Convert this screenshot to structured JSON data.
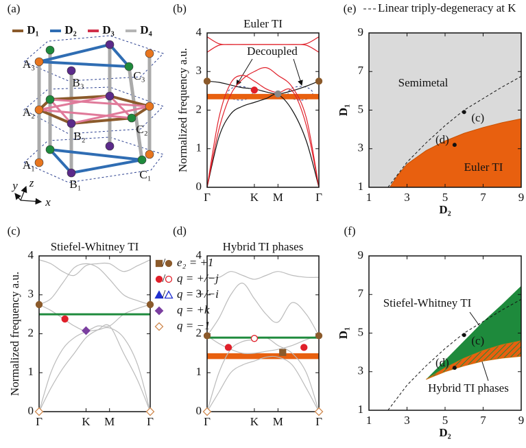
{
  "panels": {
    "a": {
      "label": "(a)",
      "legend": [
        {
          "text": "D₁",
          "color": "#8b5a2b"
        },
        {
          "text": "D₂",
          "color": "#2f6db3"
        },
        {
          "text": "D₃",
          "color": "#d0304a"
        },
        {
          "text": "D₄",
          "color": "#b5b5b5"
        }
      ],
      "atoms": [
        "A₃",
        "B₃",
        "C₃",
        "A₂",
        "B₂",
        "C₂",
        "A₁",
        "B₁",
        "C₁"
      ],
      "axes": [
        "y",
        "z",
        "x"
      ]
    },
    "b": {
      "label": "(b)",
      "title": "Euler TI",
      "ylabel": "Normalized frequency a.u.",
      "annotation": "Decoupled",
      "xlim": [
        0,
        2.366
      ],
      "ylim": [
        0,
        4
      ],
      "yticks": [
        0,
        1,
        2,
        3,
        4
      ],
      "xticks": [
        {
          "value": 0,
          "label": "Γ"
        },
        {
          "value": 1,
          "label": "K"
        },
        {
          "value": 1.5,
          "label": "M"
        },
        {
          "value": 2.366,
          "label": "Γ"
        }
      ],
      "x": [
        0,
        0.25,
        0.5,
        0.75,
        1,
        1.25,
        1.5,
        1.8,
        2.1,
        2.366
      ],
      "gap": [
        2.28,
        2.42
      ],
      "gap_color": "#e8600f",
      "bands": [
        {
          "color": "#111",
          "values": [
            2.75,
            2.72,
            2.65,
            2.58,
            2.55,
            2.47,
            2.42,
            2.5,
            2.62,
            2.75
          ]
        },
        {
          "color": "#111",
          "values": [
            0,
            1.3,
            1.9,
            2.1,
            2.2,
            2.3,
            2.4,
            2.0,
            1.2,
            0
          ]
        },
        {
          "color": "#e0202a",
          "values": [
            0,
            1.8,
            2.7,
            2.9,
            2.75,
            2.55,
            2.45,
            2.5,
            1.6,
            0
          ]
        },
        {
          "color": "#e0202a",
          "values": [
            0,
            1.5,
            2.4,
            2.8,
            3.0,
            3.1,
            2.9,
            2.6,
            1.8,
            0
          ]
        },
        {
          "color": "#e0202a",
          "values": [
            3.9,
            3.72,
            3.7,
            3.7,
            3.7,
            3.7,
            3.7,
            3.7,
            3.72,
            3.9
          ]
        },
        {
          "color": "#e0202a",
          "values": [
            3.5,
            3.68,
            3.7,
            3.7,
            3.7,
            3.7,
            3.7,
            3.7,
            3.68,
            3.5
          ]
        }
      ],
      "markers": [
        {
          "x": 0,
          "y": 2.75,
          "shape": "circle",
          "color": "#8b5a2b",
          "filled": true
        },
        {
          "x": 2.366,
          "y": 2.75,
          "shape": "circle",
          "color": "#8b5a2b",
          "filled": true
        },
        {
          "x": 1,
          "y": 2.52,
          "shape": "circle",
          "color": "#e0202a",
          "filled": true
        },
        {
          "x": 1.5,
          "y": 2.42,
          "shape": "circle",
          "color": "#888",
          "filled": true
        }
      ]
    },
    "c": {
      "label": "(c)",
      "title": "Stiefel-Whitney TI",
      "ylabel": "Normalized frequency a.u.",
      "xlim": [
        0,
        2.366
      ],
      "ylim": [
        0,
        4
      ],
      "yticks": [
        0,
        1,
        2,
        3,
        4
      ],
      "xticks": [
        {
          "value": 0,
          "label": "Γ"
        },
        {
          "value": 1,
          "label": "K"
        },
        {
          "value": 1.5,
          "label": "M"
        },
        {
          "value": 2.366,
          "label": "Γ"
        }
      ],
      "x": [
        0,
        0.25,
        0.5,
        0.75,
        1,
        1.25,
        1.5,
        1.8,
        2.1,
        2.366
      ],
      "line": 2.5,
      "line_color": "#1e8a3c",
      "bands": [
        {
          "color": "#bbb",
          "values": [
            0,
            1.0,
            1.6,
            1.9,
            2.05,
            2.1,
            2.15,
            1.9,
            1.2,
            0
          ]
        },
        {
          "color": "#bbb",
          "values": [
            0,
            0.6,
            1.1,
            1.5,
            1.9,
            2.1,
            2.2,
            1.5,
            0.8,
            0
          ]
        },
        {
          "color": "#bbb",
          "values": [
            2.75,
            2.6,
            2.4,
            2.2,
            2.08,
            2.2,
            2.2,
            2.5,
            2.65,
            2.75
          ]
        },
        {
          "color": "#bbb",
          "values": [
            2.75,
            2.9,
            3.3,
            3.7,
            3.8,
            3.7,
            3.4,
            3.0,
            2.85,
            2.75
          ]
        },
        {
          "color": "#bbb",
          "values": [
            3.9,
            3.8,
            3.6,
            3.5,
            3.75,
            3.8,
            3.8,
            3.6,
            3.75,
            3.9
          ]
        }
      ],
      "markers": [
        {
          "x": 0,
          "y": 2.75,
          "shape": "circle",
          "color": "#8b5a2b",
          "filled": true
        },
        {
          "x": 2.366,
          "y": 2.75,
          "shape": "circle",
          "color": "#8b5a2b",
          "filled": true
        },
        {
          "x": 0.55,
          "y": 2.38,
          "shape": "circle",
          "color": "#e0202a",
          "filled": true
        },
        {
          "x": 1,
          "y": 2.08,
          "shape": "diamond",
          "color": "#7b3fa0",
          "filled": true
        },
        {
          "x": 0,
          "y": 0,
          "shape": "diamond",
          "color": "#d08a50",
          "filled": false
        },
        {
          "x": 2.366,
          "y": 0,
          "shape": "diamond",
          "color": "#d08a50",
          "filled": false
        }
      ],
      "legend": [
        {
          "text": "e₂ = +1",
          "symbols": [
            {
              "shape": "square",
              "color": "#8b5a2b",
              "filled": true
            },
            {
              "shape": "circle",
              "color": "#8b5a2b",
              "filled": true
            }
          ]
        },
        {
          "text": "q = +/−j",
          "symbols": [
            {
              "shape": "circle",
              "color": "#e0202a",
              "filled": true
            },
            {
              "shape": "circle",
              "color": "#e0202a",
              "filled": false
            }
          ]
        },
        {
          "text": "q = +/−i",
          "symbols": [
            {
              "shape": "triangle",
              "color": "#2030d0",
              "filled": true
            },
            {
              "shape": "triangle",
              "color": "#2030d0",
              "filled": false
            }
          ]
        },
        {
          "text": "q = +k",
          "symbols": [
            {
              "shape": "diamond",
              "color": "#7b3fa0",
              "filled": true
            }
          ]
        },
        {
          "text": "q = −1",
          "symbols": [
            {
              "shape": "diamond",
              "color": "#d08a50",
              "filled": false
            }
          ]
        }
      ]
    },
    "d": {
      "label": "(d)",
      "title": "Hybrid TI phases",
      "xlim": [
        0,
        2.366
      ],
      "ylim": [
        0,
        4
      ],
      "yticks": [
        0,
        1,
        2,
        3,
        4
      ],
      "xticks": [
        {
          "value": 0,
          "label": "Γ"
        },
        {
          "value": 1,
          "label": "K"
        },
        {
          "value": 1.5,
          "label": "M"
        },
        {
          "value": 2.366,
          "label": "Γ"
        }
      ],
      "x": [
        0,
        0.25,
        0.5,
        0.75,
        1,
        1.25,
        1.5,
        1.8,
        2.1,
        2.366
      ],
      "gap": [
        1.35,
        1.5
      ],
      "gap_color": "#e8600f",
      "line": 1.9,
      "line_color": "#1e8a3c",
      "bands": [
        {
          "color": "#bbb",
          "values": [
            0,
            0.5,
            1.0,
            1.2,
            1.3,
            1.4,
            1.4,
            1.2,
            0.6,
            0
          ]
        },
        {
          "color": "#bbb",
          "values": [
            0,
            1.0,
            1.6,
            1.8,
            1.85,
            1.9,
            1.7,
            1.5,
            1.0,
            0
          ]
        },
        {
          "color": "#bbb",
          "values": [
            1.95,
            1.75,
            1.6,
            1.5,
            1.5,
            1.55,
            1.6,
            1.7,
            1.85,
            1.95
          ]
        },
        {
          "color": "#bbb",
          "values": [
            1.95,
            2.4,
            3.0,
            3.3,
            2.9,
            2.5,
            2.3,
            2.8,
            2.5,
            1.95
          ]
        },
        {
          "color": "#bbb",
          "values": [
            3.45,
            3.45,
            3.6,
            3.5,
            3.4,
            3.5,
            3.6,
            3.5,
            3.45,
            3.45
          ]
        }
      ],
      "markers": [
        {
          "x": 0,
          "y": 1.95,
          "shape": "circle",
          "color": "#8b5a2b",
          "filled": true
        },
        {
          "x": 2.366,
          "y": 1.95,
          "shape": "circle",
          "color": "#8b5a2b",
          "filled": true
        },
        {
          "x": 0.45,
          "y": 1.65,
          "shape": "circle",
          "color": "#e0202a",
          "filled": true
        },
        {
          "x": 1,
          "y": 1.88,
          "shape": "circle",
          "color": "#e0202a",
          "filled": false
        },
        {
          "x": 1.6,
          "y": 1.52,
          "shape": "square",
          "color": "#8b5a2b",
          "filled": true
        },
        {
          "x": 2.05,
          "y": 1.65,
          "shape": "circle",
          "color": "#e0202a",
          "filled": true
        },
        {
          "x": 0,
          "y": 0,
          "shape": "diamond",
          "color": "#d08a50",
          "filled": false
        },
        {
          "x": 2.366,
          "y": 0,
          "shape": "diamond",
          "color": "#d08a50",
          "filled": false
        }
      ]
    },
    "e": {
      "label": "(e)",
      "legend": "Linear triply-degeneracy at K",
      "xlabel": "D₂",
      "ylabel": "D₁",
      "xlim": [
        1,
        9
      ],
      "ylim": [
        1,
        9
      ],
      "xticks": [
        1,
        3,
        5,
        7,
        9
      ],
      "yticks": [
        1,
        3,
        5,
        7,
        9
      ],
      "regions": [
        "Semimetal",
        "Euler TI"
      ],
      "colors": [
        "#dadada",
        "#e8600f"
      ],
      "dashed": {
        "x": [
          2,
          3,
          4,
          5,
          6,
          7,
          8,
          9
        ],
        "y": [
          1,
          2.3,
          3.3,
          4.2,
          5.0,
          5.6,
          6.2,
          6.75
        ]
      },
      "boundary": {
        "x": [
          2.1,
          2.5,
          3,
          4,
          5,
          6,
          7,
          8,
          9
        ],
        "y": [
          1,
          1.6,
          2.2,
          2.9,
          3.4,
          3.8,
          4.1,
          4.35,
          4.55
        ]
      },
      "points": [
        {
          "label": "(c)",
          "x": 6,
          "y": 4.9
        },
        {
          "label": "(d)",
          "x": 5.5,
          "y": 3.2
        }
      ]
    },
    "f": {
      "label": "(f)",
      "xlabel": "D₂",
      "ylabel": "D₁",
      "xlim": [
        1,
        9
      ],
      "ylim": [
        1,
        9
      ],
      "xticks": [
        1,
        3,
        5,
        7,
        9
      ],
      "yticks": [
        1,
        3,
        5,
        7,
        9
      ],
      "regions": [
        "Stiefel-Whitney TI",
        "Hybrid TI phases"
      ],
      "colors": [
        "#1e8a3c",
        "#e8600f"
      ],
      "dashed": {
        "x": [
          2,
          3,
          4,
          5,
          6,
          7,
          8,
          9
        ],
        "y": [
          1,
          2.3,
          3.3,
          4.2,
          5.0,
          5.6,
          6.2,
          6.75
        ]
      },
      "upper": {
        "x": [
          4,
          5,
          6,
          7,
          8,
          9
        ],
        "y": [
          2.6,
          3.6,
          4.6,
          5.6,
          6.5,
          7.45
        ]
      },
      "middle": {
        "x": [
          4,
          5,
          6,
          7,
          8,
          9
        ],
        "y": [
          2.6,
          3.2,
          3.7,
          4.1,
          4.4,
          4.6
        ]
      },
      "lower": {
        "x": [
          4,
          5,
          6,
          7,
          8,
          9
        ],
        "y": [
          2.6,
          3.0,
          3.3,
          3.55,
          3.7,
          3.8
        ]
      },
      "points": [
        {
          "label": "(c)",
          "x": 6,
          "y": 4.9
        },
        {
          "label": "(d)",
          "x": 5.5,
          "y": 3.2
        }
      ]
    }
  }
}
